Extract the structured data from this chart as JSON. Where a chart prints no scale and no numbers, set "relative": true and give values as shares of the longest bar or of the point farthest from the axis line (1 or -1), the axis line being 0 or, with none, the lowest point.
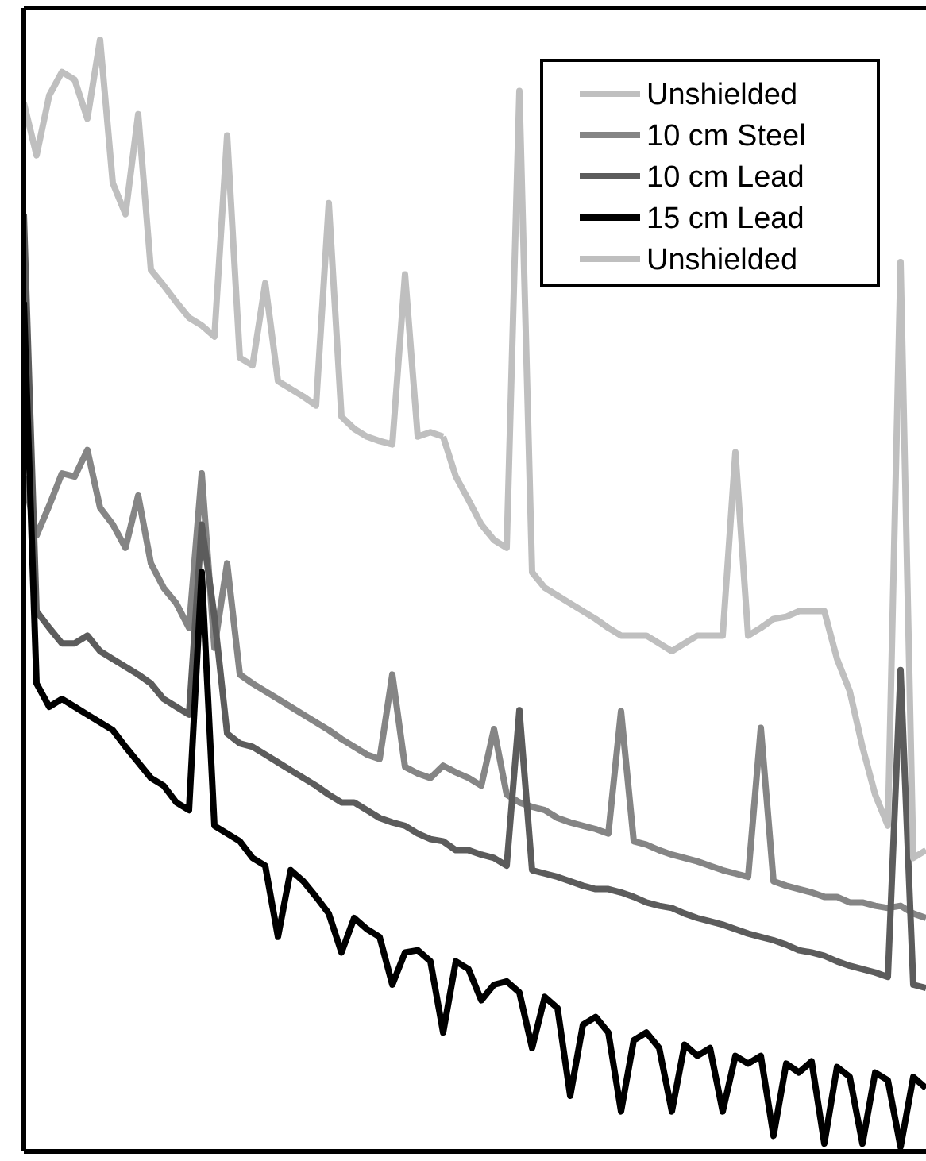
{
  "chart_data": {
    "type": "line",
    "relative": true,
    "legend": "top right",
    "line_style": "solid",
    "marker": "none",
    "categories": [
      null,
      null,
      null,
      null,
      null,
      null,
      null,
      null,
      null,
      null,
      null,
      null,
      null,
      null,
      null,
      null,
      null,
      null,
      null,
      null,
      null,
      null,
      null,
      null,
      null,
      null,
      null,
      null,
      null,
      null,
      null,
      null,
      null,
      null,
      null,
      null,
      null,
      null,
      null,
      null,
      null,
      null,
      null,
      null,
      null,
      null,
      null,
      null,
      null,
      null,
      null,
      null,
      null,
      null,
      null,
      null,
      null,
      null,
      null,
      null,
      null,
      null,
      null,
      null,
      null,
      null,
      null,
      null,
      null,
      null,
      null,
      null
    ],
    "series": [
      {
        "name": "Unshielded",
        "color": "#bfbfbf",
        "values": [
          0.943,
          0.896,
          0.95,
          0.971,
          0.964,
          0.929,
          1,
          0.871,
          0.843,
          0.933,
          0.793,
          0.779,
          0.764,
          0.75,
          0.743,
          0.733,
          0.914,
          0.714,
          0.707,
          0.781,
          0.693,
          0.686,
          0.679,
          0.671,
          0.853,
          0.661,
          0.65,
          0.643,
          0.639,
          0.636,
          0.789,
          0.643,
          0.647,
          0.643,
          null,
          null,
          null,
          null,
          null,
          null,
          null,
          null,
          null,
          null,
          null,
          null,
          null,
          null,
          null,
          null,
          null,
          null,
          null,
          null,
          null,
          null,
          null,
          null,
          null,
          null,
          null,
          null,
          null,
          null,
          null,
          null,
          null,
          null,
          null,
          null,
          null,
          null
        ]
      },
      {
        "name": "10 cm Steel",
        "color": "#858585",
        "values": [
          0.607,
          0.554,
          0.581,
          0.61,
          0.607,
          0.631,
          0.579,
          0.564,
          0.543,
          0.59,
          0.529,
          0.507,
          0.493,
          0.471,
          0.61,
          0.453,
          0.529,
          0.429,
          0.421,
          0.414,
          0.407,
          0.4,
          0.393,
          0.386,
          0.379,
          0.371,
          0.364,
          0.357,
          0.353,
          0.429,
          0.346,
          0.34,
          0.336,
          0.347,
          0.341,
          0.336,
          0.329,
          0.38,
          0.321,
          0.314,
          0.31,
          0.307,
          0.3,
          0.296,
          0.293,
          0.29,
          0.286,
          0.396,
          0.279,
          0.276,
          0.271,
          0.267,
          0.264,
          0.261,
          0.257,
          0.253,
          0.25,
          0.247,
          0.381,
          0.243,
          0.239,
          0.236,
          0.233,
          0.229,
          0.229,
          0.224,
          0.224,
          0.221,
          0.219,
          0.221,
          0.214,
          0.21
        ]
      },
      {
        "name": "10 cm Lead",
        "color": "#5c5c5c",
        "values": [
          0.843,
          0.486,
          0.471,
          0.457,
          0.457,
          0.464,
          0.45,
          0.443,
          0.436,
          0.429,
          0.421,
          0.407,
          0.4,
          0.393,
          0.564,
          0.481,
          0.376,
          0.367,
          0.364,
          0.357,
          0.35,
          0.343,
          0.336,
          0.329,
          0.321,
          0.314,
          0.314,
          0.307,
          0.3,
          0.296,
          0.293,
          0.286,
          0.281,
          0.279,
          0.271,
          0.271,
          0.267,
          0.264,
          0.257,
          0.397,
          0.253,
          0.25,
          0.247,
          0.243,
          0.239,
          0.236,
          0.236,
          0.233,
          0.229,
          0.224,
          0.221,
          0.219,
          0.214,
          0.21,
          0.207,
          0.204,
          0.2,
          0.196,
          0.193,
          0.19,
          0.186,
          0.181,
          0.179,
          0.176,
          0.171,
          0.167,
          0.164,
          0.161,
          0.157,
          0.433,
          0.15,
          0.147
        ]
      },
      {
        "name": "15 cm Lead",
        "color": "#000000",
        "values": [
          0.764,
          0.421,
          0.4,
          0.407,
          0.4,
          0.393,
          0.386,
          0.379,
          0.364,
          0.35,
          0.336,
          0.329,
          0.314,
          0.307,
          0.521,
          0.293,
          0.286,
          0.279,
          0.264,
          0.257,
          0.193,
          0.253,
          0.243,
          0.229,
          0.214,
          0.179,
          0.21,
          0.2,
          0.193,
          0.15,
          0.179,
          0.181,
          0.171,
          0.107,
          0.171,
          0.164,
          0.136,
          0.15,
          0.153,
          0.143,
          0.093,
          0.139,
          0.129,
          0.05,
          0.114,
          0.121,
          0.107,
          0.036,
          0.1,
          0.107,
          0.093,
          0.036,
          0.096,
          0.086,
          0.093,
          0.036,
          0.086,
          0.079,
          0.086,
          0.014,
          0.079,
          0.071,
          0.081,
          0.007,
          0.076,
          0.067,
          0.007,
          0.071,
          0.064,
          0.004,
          0.067,
          0.057
        ]
      },
      {
        "name": "Unshielded",
        "color": "#bfbfbf",
        "values": [
          null,
          null,
          null,
          null,
          null,
          null,
          null,
          null,
          null,
          null,
          null,
          null,
          null,
          null,
          null,
          null,
          null,
          null,
          null,
          null,
          null,
          null,
          null,
          null,
          null,
          null,
          null,
          null,
          null,
          null,
          null,
          null,
          null,
          0.643,
          0.607,
          0.586,
          0.564,
          0.55,
          0.543,
          0.954,
          0.521,
          0.507,
          0.5,
          0.493,
          0.486,
          0.479,
          0.471,
          0.464,
          0.464,
          0.464,
          0.457,
          0.45,
          0.457,
          0.464,
          0.464,
          0.464,
          0.629,
          0.464,
          0.471,
          0.479,
          0.481,
          0.486,
          0.486,
          0.486,
          0.443,
          0.414,
          0.364,
          0.321,
          0.293,
          0.8,
          0.264,
          0.271
        ]
      }
    ]
  }
}
